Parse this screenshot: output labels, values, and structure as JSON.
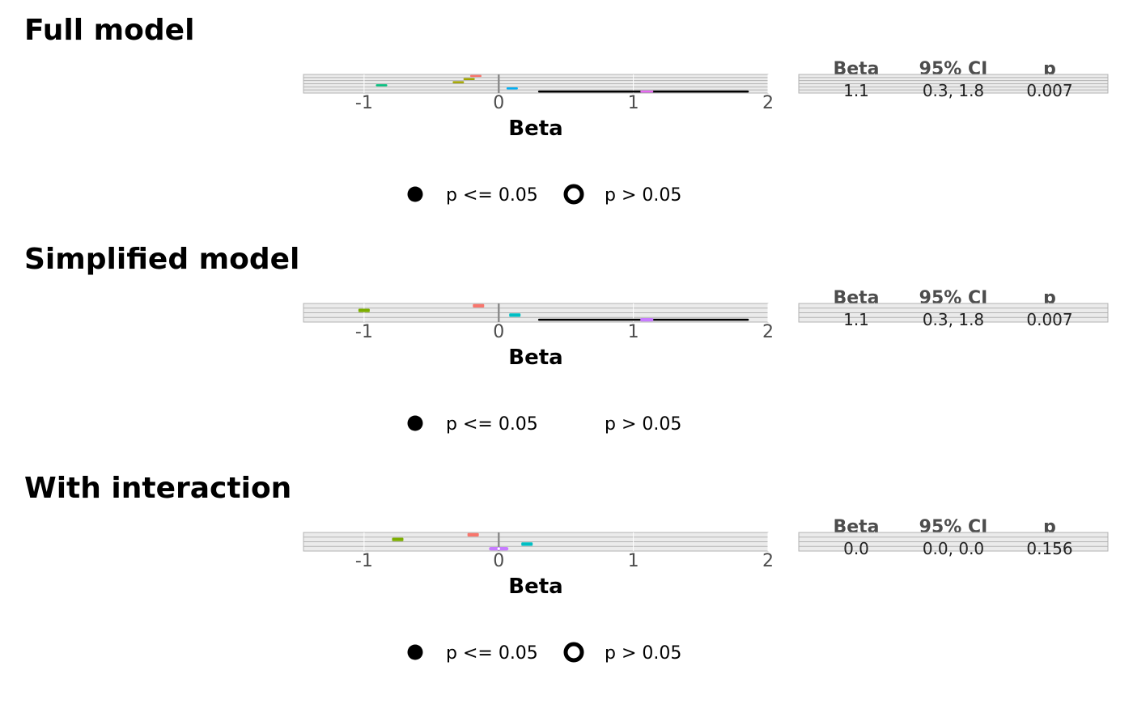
{
  "panels": [
    {
      "title": "Full model",
      "chart_data": {
        "type": "scatter",
        "subtype": "forest-plot",
        "xlabel": "Beta",
        "xlim": [
          -1.45,
          2.0
        ],
        "xticks": [
          -1,
          0,
          1,
          2
        ],
        "xtick_labels": [
          "-1",
          "0",
          "1",
          "2"
        ],
        "reference_line": 0,
        "rows": [
          {
            "beta": -0.17,
            "lo": -0.17,
            "hi": -0.17,
            "significant": true,
            "color": "#f8766d"
          },
          {
            "beta": -0.22,
            "lo": -0.22,
            "hi": -0.22,
            "significant": true,
            "color": "#a3a500"
          },
          {
            "beta": -0.3,
            "lo": -0.3,
            "hi": -0.3,
            "significant": true,
            "color": "#a3a500"
          },
          {
            "beta": -0.87,
            "lo": -0.87,
            "hi": -0.87,
            "significant": true,
            "color": "#00bf7d"
          },
          {
            "beta": 0.1,
            "lo": 0.1,
            "hi": 0.1,
            "significant": true,
            "color": "#00b0f6"
          },
          {
            "beta": 1.1,
            "lo": 0.3,
            "hi": 1.85,
            "significant": true,
            "color": "#e76bf3"
          }
        ]
      },
      "table": {
        "headers": [
          "Beta",
          "95% CI",
          "p"
        ],
        "rows": [
          [
            "",
            "",
            ""
          ],
          [
            "",
            "",
            ""
          ],
          [
            "",
            "",
            ""
          ],
          [
            "",
            "",
            ""
          ],
          [
            "",
            "",
            ""
          ],
          [
            "1.1",
            "0.3, 1.8",
            "0.007"
          ]
        ]
      },
      "legend": {
        "sig_label": "p <= 0.05",
        "nonsig_label": "p > 0.05",
        "nonsig_symbol_visible": true
      }
    },
    {
      "title": "Simplified model",
      "chart_data": {
        "type": "scatter",
        "subtype": "forest-plot",
        "xlabel": "Beta",
        "xlim": [
          -1.45,
          2.0
        ],
        "xticks": [
          -1,
          0,
          1,
          2
        ],
        "xtick_labels": [
          "-1",
          "0",
          "1",
          "2"
        ],
        "reference_line": 0,
        "rows": [
          {
            "beta": -0.15,
            "lo": -0.15,
            "hi": -0.15,
            "significant": true,
            "color": "#f8766d"
          },
          {
            "beta": -1.0,
            "lo": -1.0,
            "hi": -1.0,
            "significant": true,
            "color": "#7cae00"
          },
          {
            "beta": 0.12,
            "lo": 0.12,
            "hi": 0.12,
            "significant": true,
            "color": "#00bfc4"
          },
          {
            "beta": 1.1,
            "lo": 0.3,
            "hi": 1.85,
            "significant": true,
            "color": "#c77cff"
          }
        ]
      },
      "table": {
        "headers": [
          "Beta",
          "95% CI",
          "p"
        ],
        "rows": [
          [
            "",
            "",
            ""
          ],
          [
            "",
            "",
            ""
          ],
          [
            "",
            "",
            ""
          ],
          [
            "1.1",
            "0.3, 1.8",
            "0.007"
          ]
        ]
      },
      "legend": {
        "sig_label": "p <= 0.05",
        "nonsig_label": "p > 0.05",
        "nonsig_symbol_visible": false
      }
    },
    {
      "title": "With interaction",
      "chart_data": {
        "type": "scatter",
        "subtype": "forest-plot",
        "xlabel": "Beta",
        "xlim": [
          -1.45,
          2.0
        ],
        "xticks": [
          -1,
          0,
          1,
          2
        ],
        "xtick_labels": [
          "-1",
          "0",
          "1",
          "2"
        ],
        "reference_line": 0,
        "rows": [
          {
            "beta": -0.19,
            "lo": -0.19,
            "hi": -0.19,
            "significant": true,
            "color": "#f8766d"
          },
          {
            "beta": -0.75,
            "lo": -0.75,
            "hi": -0.75,
            "significant": true,
            "color": "#7cae00"
          },
          {
            "beta": 0.21,
            "lo": 0.21,
            "hi": 0.21,
            "significant": true,
            "color": "#00bfc4"
          },
          {
            "beta": 0.0,
            "lo": 0.0,
            "hi": 0.0,
            "significant": false,
            "color": "#c77cff"
          }
        ]
      },
      "table": {
        "headers": [
          "Beta",
          "95% CI",
          "p"
        ],
        "rows": [
          [
            "",
            "",
            ""
          ],
          [
            "",
            "",
            ""
          ],
          [
            "",
            "",
            ""
          ],
          [
            "0.0",
            "0.0, 0.0",
            "0.156"
          ]
        ]
      },
      "legend": {
        "sig_label": "p <= 0.05",
        "nonsig_label": "p > 0.05",
        "nonsig_symbol_visible": true
      }
    }
  ]
}
